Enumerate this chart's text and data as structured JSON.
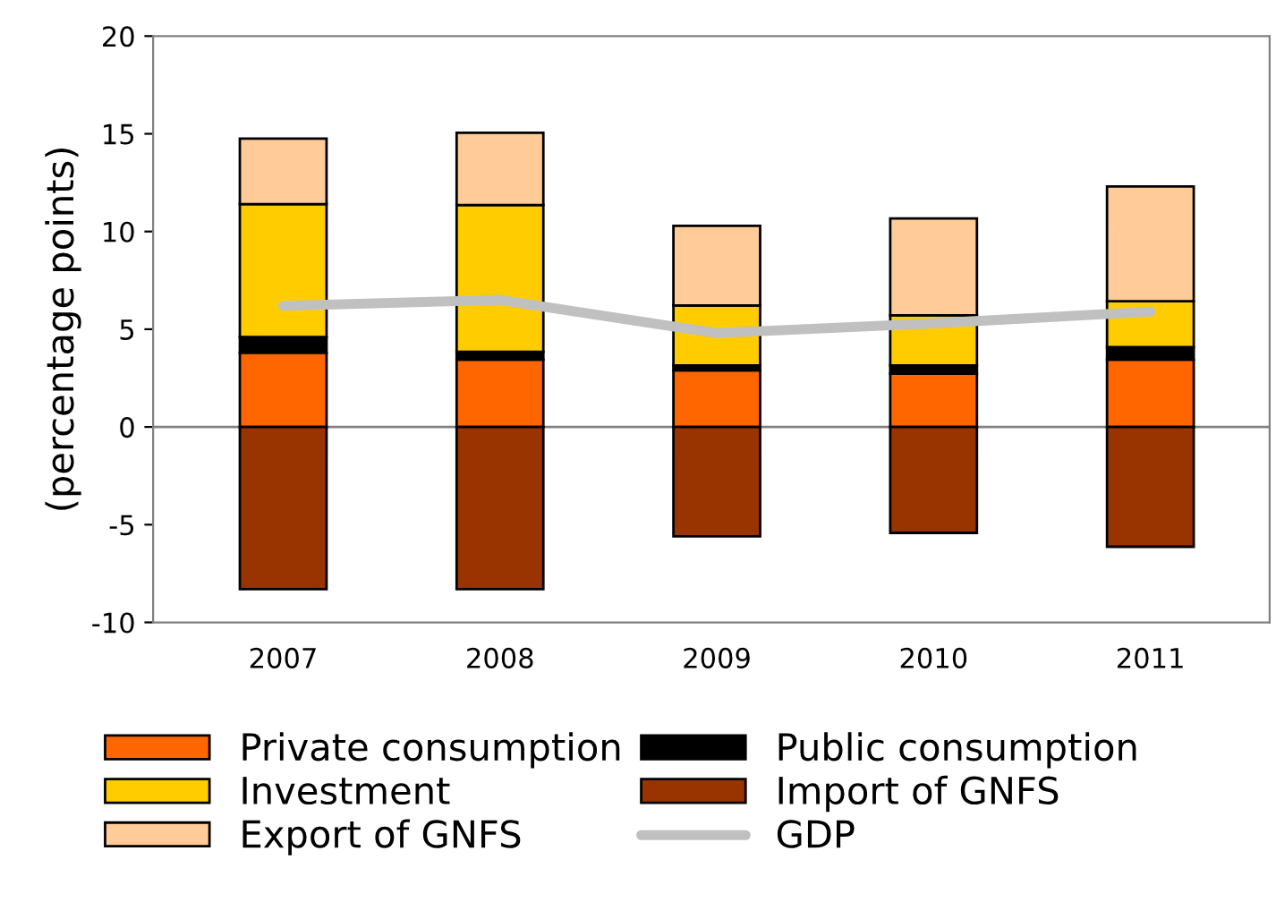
{
  "chart_data": {
    "type": "bar",
    "stacked": true,
    "ylabel": "(percentage points)",
    "categories": [
      "2007",
      "2008",
      "2009",
      "2010",
      "2011"
    ],
    "series": [
      {
        "name": "Private consumption",
        "color": "#ff6600",
        "values": [
          3.8,
          3.45,
          2.9,
          2.73,
          3.45
        ]
      },
      {
        "name": "Public consumption",
        "color": "#000000",
        "values": [
          0.8,
          0.4,
          0.25,
          0.42,
          0.63
        ]
      },
      {
        "name": "Investment",
        "color": "#ffcc00",
        "values": [
          6.8,
          7.5,
          3.07,
          2.56,
          2.35
        ]
      },
      {
        "name": "Import of GNFS",
        "color": "#993300",
        "values": [
          -8.3,
          -8.3,
          -5.6,
          -5.42,
          -6.13
        ]
      },
      {
        "name": "Export of GNFS",
        "color": "#ffcc99",
        "values": [
          3.35,
          3.7,
          4.07,
          4.96,
          5.88
        ]
      },
      {
        "name": "GDP",
        "type": "line",
        "color": "#c0c0c0",
        "values": [
          6.2,
          6.5,
          4.8,
          5.3,
          5.9
        ]
      }
    ],
    "ylim": [
      -10,
      20
    ],
    "yticks": [
      -10,
      -5,
      0,
      5,
      10,
      15,
      20
    ],
    "ref_lines": [
      {
        "axis": "y",
        "value": 0,
        "color": "#808080"
      }
    ],
    "grid": false,
    "legend": "bottom"
  }
}
